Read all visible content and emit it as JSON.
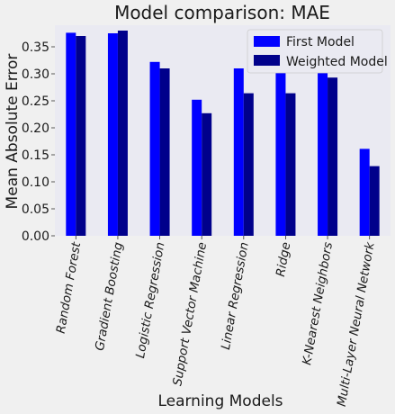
{
  "chart_data": {
    "type": "bar",
    "title": "Model comparison: MAE",
    "xlabel": "Learning Models",
    "ylabel": "Mean Absolute Error",
    "ylim": [
      0,
      0.39
    ],
    "yticks": [
      "0.00",
      "0.05",
      "0.10",
      "0.15",
      "0.20",
      "0.25",
      "0.30",
      "0.35"
    ],
    "grid": false,
    "legend_position": "top-right",
    "categories": [
      "Random Forest",
      "Gradient Boosting",
      "Logistic Regression",
      "Support Vector Machine",
      "Linear Regression",
      "Ridge",
      "K-Nearest Neighbors",
      "Multi-Layer Neural Network"
    ],
    "series": [
      {
        "name": "First Model",
        "color": "#0000ff",
        "values": [
          0.376,
          0.375,
          0.322,
          0.252,
          0.31,
          0.31,
          0.302,
          0.161
        ]
      },
      {
        "name": "Weighted Model",
        "color": "#00008b",
        "values": [
          0.37,
          0.38,
          0.31,
          0.227,
          0.264,
          0.264,
          0.293,
          0.129
        ]
      }
    ]
  }
}
